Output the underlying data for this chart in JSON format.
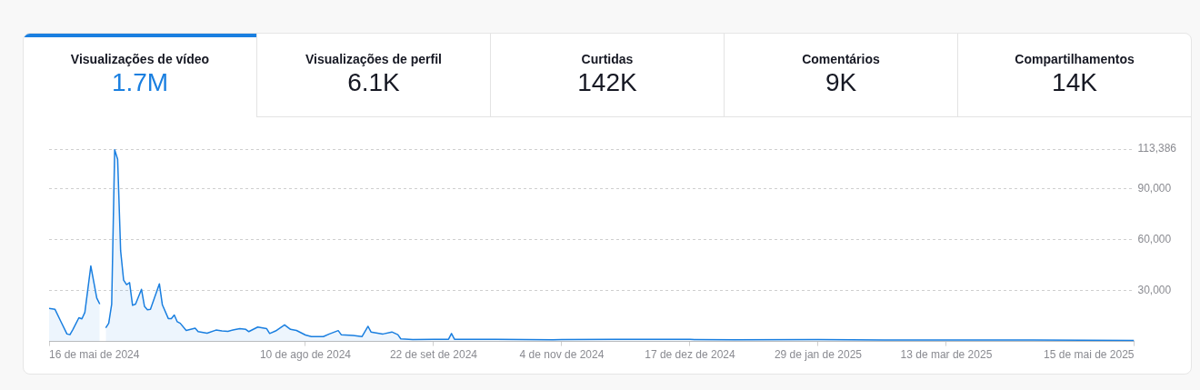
{
  "chart_data": [
    {
      "type": "other",
      "categories": [
        "Visualizações de vídeo",
        "Visualizações de perfil",
        "Curtidas",
        "Comentários",
        "Compartilhamentos"
      ],
      "value_labels": [
        "1.7M",
        "6.1K",
        "142K",
        "9K",
        "14K"
      ],
      "color": "#161823",
      "colors": [
        "#1a7fe0",
        "#161823",
        "#161823",
        "#161823",
        "#161823"
      ]
    },
    {
      "type": "area",
      "x": [
        "2024-05-16",
        "2024-05-18",
        "2024-05-20",
        "2024-05-22",
        "2024-05-23",
        "2024-05-24",
        "2024-05-26",
        "2024-05-27",
        "2024-05-28",
        "2024-05-30",
        "2024-06-01",
        "2024-06-02",
        "2024-06-03",
        "2024-06-04",
        "2024-06-05",
        "2024-06-06",
        "2024-06-07",
        "2024-06-08",
        "2024-06-09",
        "2024-06-10",
        "2024-06-11",
        "2024-06-12",
        "2024-06-13",
        "2024-06-14",
        "2024-06-16",
        "2024-06-17",
        "2024-06-18",
        "2024-06-19",
        "2024-06-22",
        "2024-06-23",
        "2024-06-25",
        "2024-06-26",
        "2024-06-27",
        "2024-06-28",
        "2024-06-29",
        "2024-07-01",
        "2024-07-04",
        "2024-07-05",
        "2024-07-08",
        "2024-07-11",
        "2024-07-13",
        "2024-07-15",
        "2024-07-17",
        "2024-07-19",
        "2024-07-21",
        "2024-07-22",
        "2024-07-25",
        "2024-07-28",
        "2024-07-29",
        "2024-07-31",
        "2024-08-03",
        "2024-08-05",
        "2024-08-07",
        "2024-08-10",
        "2024-08-12",
        "2024-08-16",
        "2024-08-18",
        "2024-08-21",
        "2024-08-22",
        "2024-08-26",
        "2024-08-29",
        "2024-08-31",
        "2024-09-01",
        "2024-09-05",
        "2024-09-08",
        "2024-09-10",
        "2024-09-11",
        "2024-09-15",
        "2024-09-22",
        "2024-09-27",
        "2024-09-28",
        "2024-09-29",
        "2024-10-13",
        "2024-11-01",
        "2024-11-04",
        "2024-11-22",
        "2024-12-17",
        "2025-01-01",
        "2025-01-29",
        "2025-02-20",
        "2025-03-13",
        "2025-04-11",
        "2025-05-15"
      ],
      "series": [
        {
          "color": "#1a7fe0",
          "values": [
            19500,
            18900,
            11600,
            4400,
            4000,
            7100,
            14000,
            13300,
            17100,
            44500,
            25600,
            22000,
            null,
            8000,
            10700,
            22000,
            113000,
            107400,
            53400,
            36200,
            33500,
            34700,
            21300,
            22000,
            30700,
            20700,
            18700,
            18900,
            34000,
            21600,
            13500,
            13500,
            15600,
            11600,
            10700,
            6500,
            7800,
            5800,
            4900,
            6700,
            6200,
            6000,
            6900,
            7600,
            7100,
            5800,
            8500,
            7500,
            4700,
            6200,
            9800,
            7100,
            6500,
            3800,
            2900,
            2900,
            4400,
            6400,
            4000,
            3500,
            2900,
            8900,
            5600,
            4400,
            5600,
            4000,
            1500,
            1100,
            1200,
            1300,
            4700,
            1300,
            1200,
            1000,
            1100,
            1300,
            1200,
            1000,
            1100,
            900,
            900,
            800,
            600
          ]
        }
      ],
      "xlim": [
        "2024-05-16",
        "2025-05-15"
      ],
      "xticks": [
        {
          "value": "2024-05-16",
          "label": "16 de mai de 2024"
        },
        {
          "value": "2024-08-10",
          "label": "10 de ago de 2024"
        },
        {
          "value": "2024-09-22",
          "label": "22 de set de 2024"
        },
        {
          "value": "2024-11-04",
          "label": "4 de nov de 2024"
        },
        {
          "value": "2024-12-17",
          "label": "17 de dez de 2024"
        },
        {
          "value": "2025-01-29",
          "label": "29 de jan de 2025"
        },
        {
          "value": "2025-03-13",
          "label": "13 de mar de 2025"
        },
        {
          "value": "2025-05-15",
          "label": "15 de mai de 2025"
        }
      ],
      "ylim": [
        0,
        113386
      ],
      "yticks": [
        {
          "value": 30000,
          "label": "30,000"
        },
        {
          "value": 60000,
          "label": "60,000"
        },
        {
          "value": 90000,
          "label": "90,000"
        },
        {
          "value": 113386,
          "label": "113,386"
        }
      ],
      "grid": "y",
      "legend": false
    }
  ]
}
